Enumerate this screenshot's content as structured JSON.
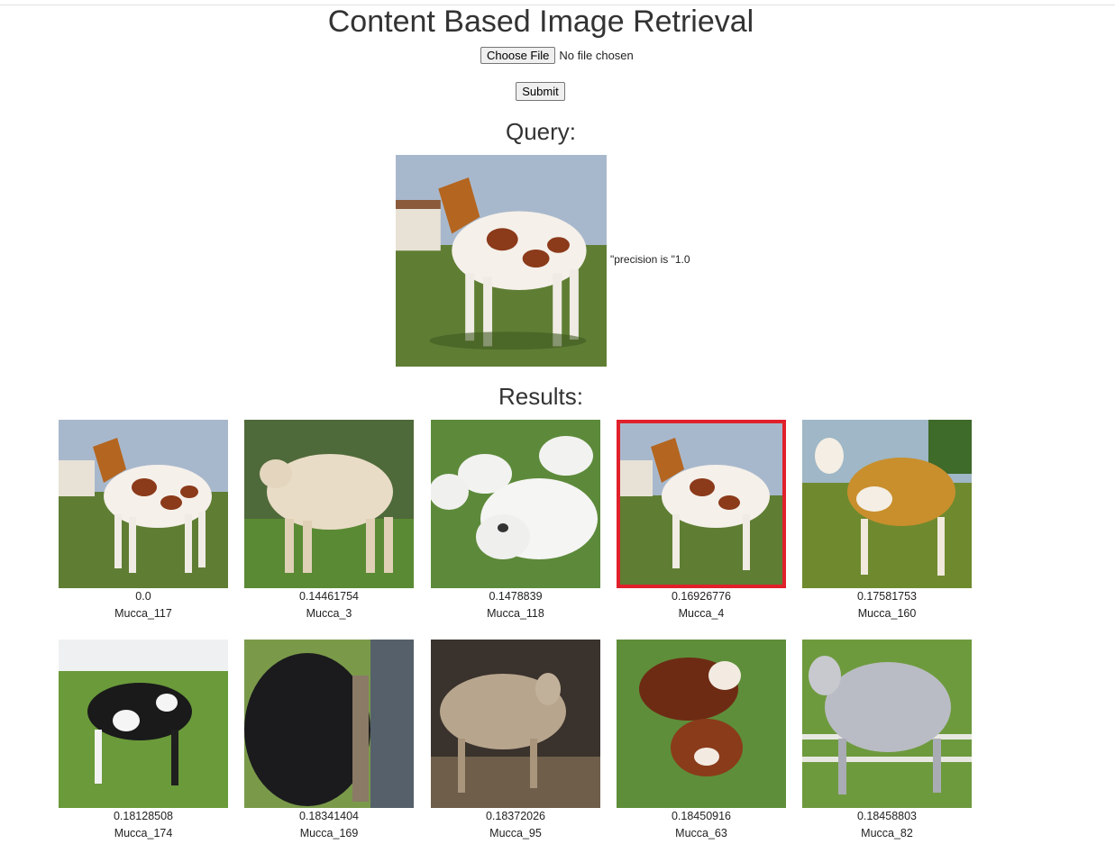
{
  "header": {
    "title": "Content Based Image Retrieval"
  },
  "form": {
    "choose_file_label": "Choose File",
    "file_status": "No file chosen",
    "submit_label": "Submit"
  },
  "query": {
    "heading": "Query:",
    "precision_text": "\"precision is \"1.0"
  },
  "results": {
    "heading": "Results:",
    "items": [
      {
        "distance": "0.0",
        "name": "Mucca_117"
      },
      {
        "distance": "0.14461754",
        "name": "Mucca_3"
      },
      {
        "distance": "0.1478839",
        "name": "Mucca_118"
      },
      {
        "distance": "0.16926776",
        "name": "Mucca_4"
      },
      {
        "distance": "0.17581753",
        "name": "Mucca_160"
      },
      {
        "distance": "0.18128508",
        "name": "Mucca_174"
      },
      {
        "distance": "0.18341404",
        "name": "Mucca_169"
      },
      {
        "distance": "0.18372026",
        "name": "Mucca_95"
      },
      {
        "distance": "0.18450916",
        "name": "Mucca_63"
      },
      {
        "distance": "0.18458803",
        "name": "Mucca_82"
      }
    ]
  },
  "colors": {
    "highlight_border": "#e0202a",
    "sky": "#a9b9cc",
    "grass": "#5a7a32"
  }
}
